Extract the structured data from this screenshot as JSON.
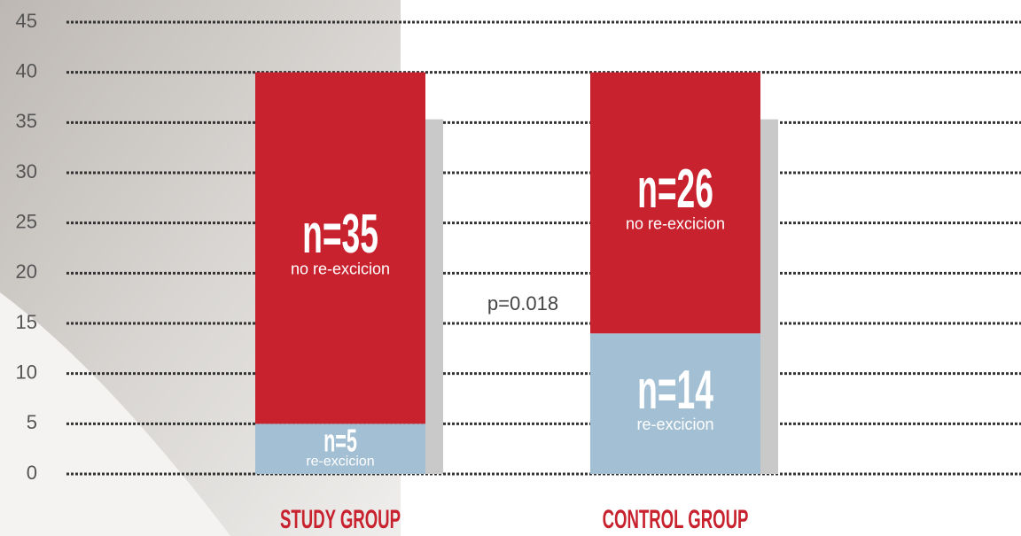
{
  "chart_data": {
    "type": "stacked_bar",
    "categories": [
      "STUDY GROUP",
      "CONTROL GROUP"
    ],
    "series": [
      {
        "name": "re-excicion",
        "color": "#a3bfd3",
        "values": [
          5,
          14
        ],
        "value_labels": [
          "n=5",
          "n=14"
        ]
      },
      {
        "name": "no re-excicion",
        "color": "#c8222f",
        "values": [
          35,
          26
        ],
        "value_labels": [
          "n=35",
          "n=26"
        ]
      }
    ],
    "annotation": "p=0.018",
    "ylim": [
      0,
      45
    ],
    "yticks": [
      0,
      5,
      10,
      15,
      20,
      25,
      30,
      35,
      40,
      45
    ],
    "grid": true
  }
}
